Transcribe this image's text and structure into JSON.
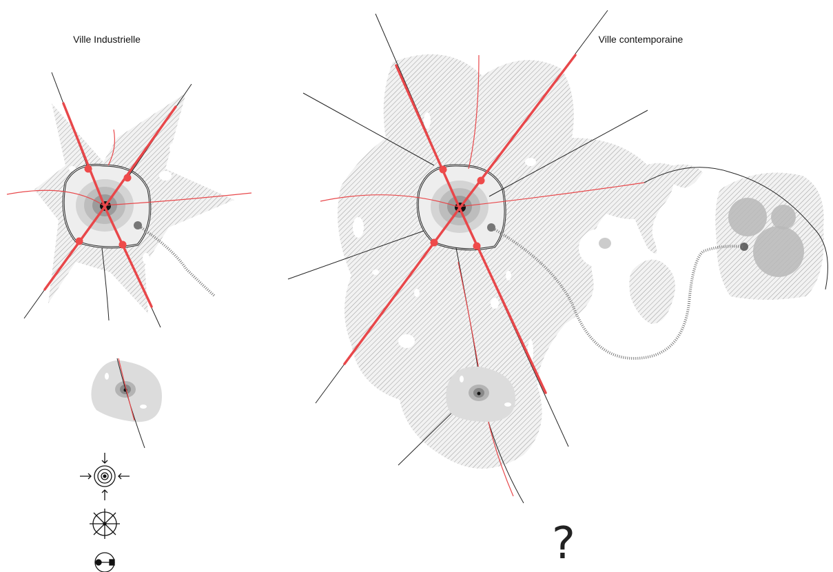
{
  "labels": {
    "left": "Ville Industrielle",
    "right": "Ville contemporaine"
  },
  "question": "?"
}
